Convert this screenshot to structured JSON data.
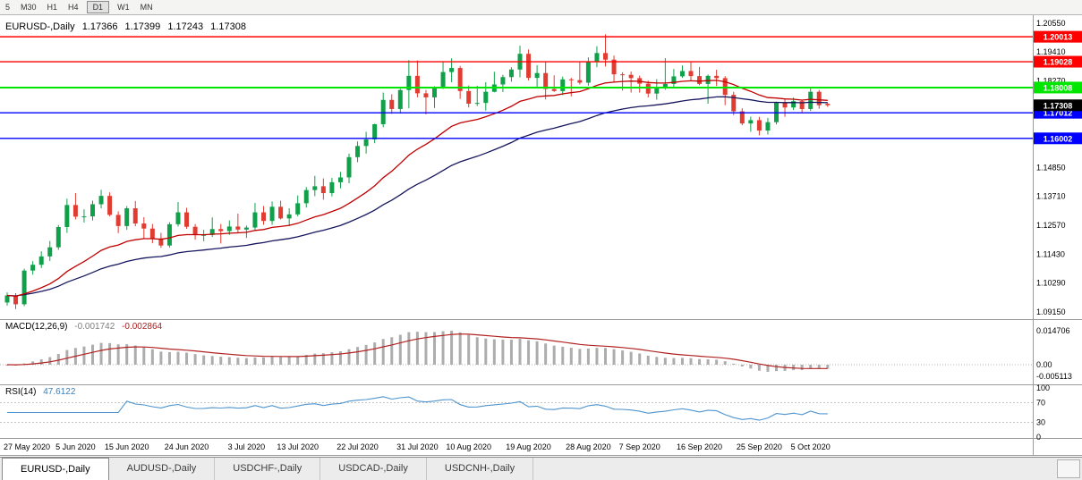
{
  "toolbar": {
    "buttons": [
      {
        "label": "5",
        "active": false
      },
      {
        "label": "M30",
        "active": false
      },
      {
        "label": "H1",
        "active": false
      },
      {
        "label": "H4",
        "active": false
      },
      {
        "label": "D1",
        "active": true
      },
      {
        "label": "W1",
        "active": false
      },
      {
        "label": "MN",
        "active": false
      }
    ]
  },
  "chart_data": {
    "type": "candlestick",
    "title": "EURUSD-,Daily",
    "ohlc_readout": {
      "open": "1.17366",
      "high": "1.17399",
      "low": "1.17243",
      "close": "1.17308"
    },
    "y_range": [
      1.089,
      1.209
    ],
    "y_axis_ticks": [
      {
        "label": "1.20550",
        "price": 1.2055
      },
      {
        "label": "1.19410",
        "price": 1.1941
      },
      {
        "label": "1.18270",
        "price": 1.1827
      },
      {
        "label": "1.14850",
        "price": 1.1485
      },
      {
        "label": "1.13710",
        "price": 1.1371
      },
      {
        "label": "1.12570",
        "price": 1.1257
      },
      {
        "label": "1.11430",
        "price": 1.1143
      },
      {
        "label": "1.10290",
        "price": 1.1029
      },
      {
        "label": "1.09150",
        "price": 1.0915
      }
    ],
    "levels": [
      {
        "label": "1.20013",
        "price": 1.20013,
        "color": "#FF0000"
      },
      {
        "label": "1.19028",
        "price": 1.19028,
        "color": "#FF0000"
      },
      {
        "label": "1.18008",
        "price": 1.18008,
        "color": "#00E600"
      },
      {
        "label": "1.17012",
        "price": 1.17012,
        "color": "#0000FF"
      },
      {
        "label": "1.16002",
        "price": 1.16002,
        "color": "#0000FF"
      }
    ],
    "current_price": {
      "label": "1.17308",
      "price": 1.17308,
      "color": "#000000"
    },
    "x_labels": [
      {
        "label": "27 May 2020",
        "index": 1
      },
      {
        "label": "5 Jun 2020",
        "index": 8
      },
      {
        "label": "15 Jun 2020",
        "index": 14
      },
      {
        "label": "24 Jun 2020",
        "index": 21
      },
      {
        "label": "3 Jul 2020",
        "index": 28
      },
      {
        "label": "13 Jul 2020",
        "index": 34
      },
      {
        "label": "22 Jul 2020",
        "index": 41
      },
      {
        "label": "31 Jul 2020",
        "index": 48
      },
      {
        "label": "10 Aug 2020",
        "index": 54
      },
      {
        "label": "19 Aug 2020",
        "index": 61
      },
      {
        "label": "28 Aug 2020",
        "index": 68
      },
      {
        "label": "7 Sep 2020",
        "index": 74
      },
      {
        "label": "16 Sep 2020",
        "index": 81
      },
      {
        "label": "25 Sep 2020",
        "index": 88
      },
      {
        "label": "5 Oct 2020",
        "index": 94
      }
    ],
    "candles": [
      [
        1.0952,
        1.0992,
        1.094,
        1.098
      ],
      [
        1.098,
        1.0989,
        1.0926,
        1.0945
      ],
      [
        1.0945,
        1.1085,
        1.0938,
        1.1078
      ],
      [
        1.1078,
        1.1115,
        1.1062,
        1.1101
      ],
      [
        1.1101,
        1.1154,
        1.1088,
        1.1134
      ],
      [
        1.1134,
        1.1195,
        1.1116,
        1.117
      ],
      [
        1.117,
        1.1258,
        1.116,
        1.125
      ],
      [
        1.125,
        1.1362,
        1.1227,
        1.1337
      ],
      [
        1.1337,
        1.1384,
        1.128,
        1.1291
      ],
      [
        1.1291,
        1.132,
        1.1268,
        1.1292
      ],
      [
        1.1292,
        1.1354,
        1.1276,
        1.134
      ],
      [
        1.134,
        1.1397,
        1.1324,
        1.1373
      ],
      [
        1.1373,
        1.1387,
        1.1292,
        1.1298
      ],
      [
        1.1298,
        1.1312,
        1.1226,
        1.1254
      ],
      [
        1.1254,
        1.1333,
        1.1239,
        1.1324
      ],
      [
        1.1324,
        1.1353,
        1.1253,
        1.1264
      ],
      [
        1.1264,
        1.1289,
        1.1204,
        1.1244
      ],
      [
        1.1244,
        1.1262,
        1.1186,
        1.1205
      ],
      [
        1.1205,
        1.1227,
        1.1168,
        1.1177
      ],
      [
        1.1177,
        1.1269,
        1.1169,
        1.1261
      ],
      [
        1.1261,
        1.1349,
        1.1252,
        1.1308
      ],
      [
        1.1308,
        1.1326,
        1.1243,
        1.1251
      ],
      [
        1.1251,
        1.1262,
        1.12,
        1.1218
      ],
      [
        1.1218,
        1.1239,
        1.1194,
        1.1219
      ],
      [
        1.1219,
        1.1288,
        1.1211,
        1.1242
      ],
      [
        1.1242,
        1.1262,
        1.1185,
        1.1234
      ],
      [
        1.1234,
        1.1276,
        1.1219,
        1.1252
      ],
      [
        1.1252,
        1.1303,
        1.1228,
        1.124
      ],
      [
        1.124,
        1.1256,
        1.1207,
        1.1248
      ],
      [
        1.1248,
        1.1345,
        1.1238,
        1.1308
      ],
      [
        1.1308,
        1.1333,
        1.1259,
        1.1274
      ],
      [
        1.1274,
        1.1351,
        1.1259,
        1.133
      ],
      [
        1.133,
        1.1354,
        1.128,
        1.1284
      ],
      [
        1.1284,
        1.1324,
        1.1254,
        1.13
      ],
      [
        1.13,
        1.1375,
        1.1292,
        1.1344
      ],
      [
        1.1344,
        1.1408,
        1.1327,
        1.1396
      ],
      [
        1.1396,
        1.1452,
        1.1372,
        1.1411
      ],
      [
        1.1411,
        1.1442,
        1.1358,
        1.1384
      ],
      [
        1.1384,
        1.1444,
        1.1371,
        1.1427
      ],
      [
        1.1427,
        1.1468,
        1.1403,
        1.1446
      ],
      [
        1.1446,
        1.154,
        1.1423,
        1.1526
      ],
      [
        1.1526,
        1.1588,
        1.1506,
        1.157
      ],
      [
        1.157,
        1.1626,
        1.154,
        1.1596
      ],
      [
        1.1596,
        1.1658,
        1.1581,
        1.1656
      ],
      [
        1.1656,
        1.1781,
        1.1644,
        1.1752
      ],
      [
        1.1752,
        1.1774,
        1.1697,
        1.1716
      ],
      [
        1.1716,
        1.1796,
        1.1698,
        1.1791
      ],
      [
        1.1791,
        1.1909,
        1.1719,
        1.1847
      ],
      [
        1.1847,
        1.1908,
        1.1762,
        1.1778
      ],
      [
        1.1778,
        1.1791,
        1.1695,
        1.1762
      ],
      [
        1.1762,
        1.1806,
        1.172,
        1.1803
      ],
      [
        1.1803,
        1.1905,
        1.1795,
        1.1862
      ],
      [
        1.1862,
        1.1916,
        1.1822,
        1.1878
      ],
      [
        1.1878,
        1.1886,
        1.1756,
        1.1787
      ],
      [
        1.1787,
        1.1809,
        1.1722,
        1.1737
      ],
      [
        1.1737,
        1.1808,
        1.1728,
        1.174
      ],
      [
        1.174,
        1.1822,
        1.171,
        1.1784
      ],
      [
        1.1784,
        1.1863,
        1.1782,
        1.1813
      ],
      [
        1.1813,
        1.1851,
        1.1783,
        1.1842
      ],
      [
        1.1842,
        1.1881,
        1.1824,
        1.1872
      ],
      [
        1.1872,
        1.1966,
        1.1841,
        1.1934
      ],
      [
        1.1934,
        1.1951,
        1.1829,
        1.1839
      ],
      [
        1.1839,
        1.1889,
        1.1804,
        1.1858
      ],
      [
        1.1858,
        1.1902,
        1.1754,
        1.1795
      ],
      [
        1.1795,
        1.1849,
        1.1784,
        1.1787
      ],
      [
        1.1787,
        1.1844,
        1.1771,
        1.1833
      ],
      [
        1.1833,
        1.1839,
        1.1766,
        1.183
      ],
      [
        1.183,
        1.1901,
        1.1813,
        1.182
      ],
      [
        1.182,
        1.192,
        1.1808,
        1.1903
      ],
      [
        1.1903,
        1.1964,
        1.1881,
        1.1937
      ],
      [
        1.1937,
        1.2011,
        1.1884,
        1.1911
      ],
      [
        1.1911,
        1.1927,
        1.1822,
        1.1853
      ],
      [
        1.1853,
        1.1861,
        1.1789,
        1.1851
      ],
      [
        1.1851,
        1.1864,
        1.1781,
        1.1838
      ],
      [
        1.1838,
        1.1848,
        1.1781,
        1.1816
      ],
      [
        1.1816,
        1.1828,
        1.1762,
        1.1777
      ],
      [
        1.1777,
        1.1834,
        1.1753,
        1.1802
      ],
      [
        1.1802,
        1.1917,
        1.1792,
        1.1815
      ],
      [
        1.1815,
        1.1874,
        1.1801,
        1.1845
      ],
      [
        1.1845,
        1.1888,
        1.1839,
        1.1866
      ],
      [
        1.1866,
        1.1901,
        1.1829,
        1.1846
      ],
      [
        1.1846,
        1.1882,
        1.181,
        1.1815
      ],
      [
        1.1815,
        1.1852,
        1.1737,
        1.1847
      ],
      [
        1.1847,
        1.1871,
        1.1807,
        1.1838
      ],
      [
        1.1838,
        1.1846,
        1.1731,
        1.1772
      ],
      [
        1.1772,
        1.1784,
        1.1692,
        1.1707
      ],
      [
        1.1707,
        1.1719,
        1.1652,
        1.1659
      ],
      [
        1.1659,
        1.1686,
        1.1626,
        1.1672
      ],
      [
        1.1672,
        1.1685,
        1.1612,
        1.1631
      ],
      [
        1.1631,
        1.1681,
        1.1615,
        1.1664
      ],
      [
        1.1664,
        1.1745,
        1.1655,
        1.1743
      ],
      [
        1.1743,
        1.1755,
        1.1685,
        1.1722
      ],
      [
        1.1722,
        1.1761,
        1.1712,
        1.1747
      ],
      [
        1.1747,
        1.1751,
        1.17,
        1.1716
      ],
      [
        1.1716,
        1.1797,
        1.1708,
        1.1784
      ],
      [
        1.1784,
        1.1791,
        1.1717,
        1.1731
      ],
      [
        1.17366,
        1.17399,
        1.17243,
        1.17308
      ]
    ],
    "overlays": {
      "ma_fast": {
        "period": 20,
        "color": "#C00000"
      },
      "ma_slow": {
        "period": 40,
        "color": "#16165E"
      }
    },
    "colors": {
      "up": "#10A04A",
      "down": "#E03C32",
      "macd_hist": "#ADADAD",
      "macd_signal": "#B22222",
      "rsi": "#4F94CD"
    },
    "indicators": {
      "macd": {
        "name": "MACD(12,26,9)",
        "value_main": "-0.001742",
        "value_signal": "-0.002864",
        "params": [
          12,
          26,
          9
        ],
        "axis_ticks": [
          {
            "label": "0.014706",
            "value": 0.014706
          },
          {
            "label": "0.00",
            "value": 0
          },
          {
            "label": "-0.005113",
            "value": -0.005113
          }
        ]
      },
      "rsi": {
        "name": "RSI(14)",
        "value": "47.6122",
        "period": 14,
        "levels": [
          70,
          30
        ],
        "axis_ticks": [
          {
            "label": "100",
            "value": 100
          },
          {
            "label": "70",
            "value": 70
          },
          {
            "label": "30",
            "value": 30
          },
          {
            "label": "0",
            "value": 0
          }
        ]
      }
    }
  },
  "tabs": {
    "items": [
      {
        "label": "EURUSD-,Daily",
        "active": true
      },
      {
        "label": "AUDUSD-,Daily",
        "active": false
      },
      {
        "label": "USDCHF-,Daily",
        "active": false
      },
      {
        "label": "USDCAD-,Daily",
        "active": false
      },
      {
        "label": "USDCNH-,Daily",
        "active": false
      }
    ]
  }
}
